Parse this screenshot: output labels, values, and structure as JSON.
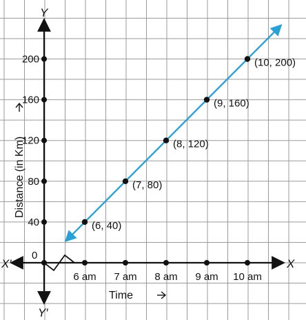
{
  "chart_data": {
    "type": "line",
    "x_axis_letter": "X",
    "x_axis_letter_neg": "X′",
    "y_axis_letter": "Y",
    "y_axis_letter_neg": "Y′",
    "xlabel": "Time",
    "ylabel": "Distance (in Km)",
    "origin_label": "0",
    "categories": [
      "6 am",
      "7 am",
      "8 am",
      "9 am",
      "10 am"
    ],
    "x": [
      6,
      7,
      8,
      9,
      10
    ],
    "y_ticks": [
      40,
      80,
      120,
      160,
      200
    ],
    "xlim": [
      5,
      10
    ],
    "ylim": [
      0,
      200
    ],
    "grid": true,
    "series": [
      {
        "values": [
          40,
          80,
          120,
          160,
          200
        ],
        "point_labels": [
          "(6, 40)",
          "(7, 80)",
          "(8, 120)",
          "(9, 160)",
          "(10, 200)"
        ]
      }
    ],
    "colors": {
      "line": "#2aa1d6",
      "grid": "#9a9a9a",
      "axis": "#111111",
      "point": "#111111"
    }
  }
}
